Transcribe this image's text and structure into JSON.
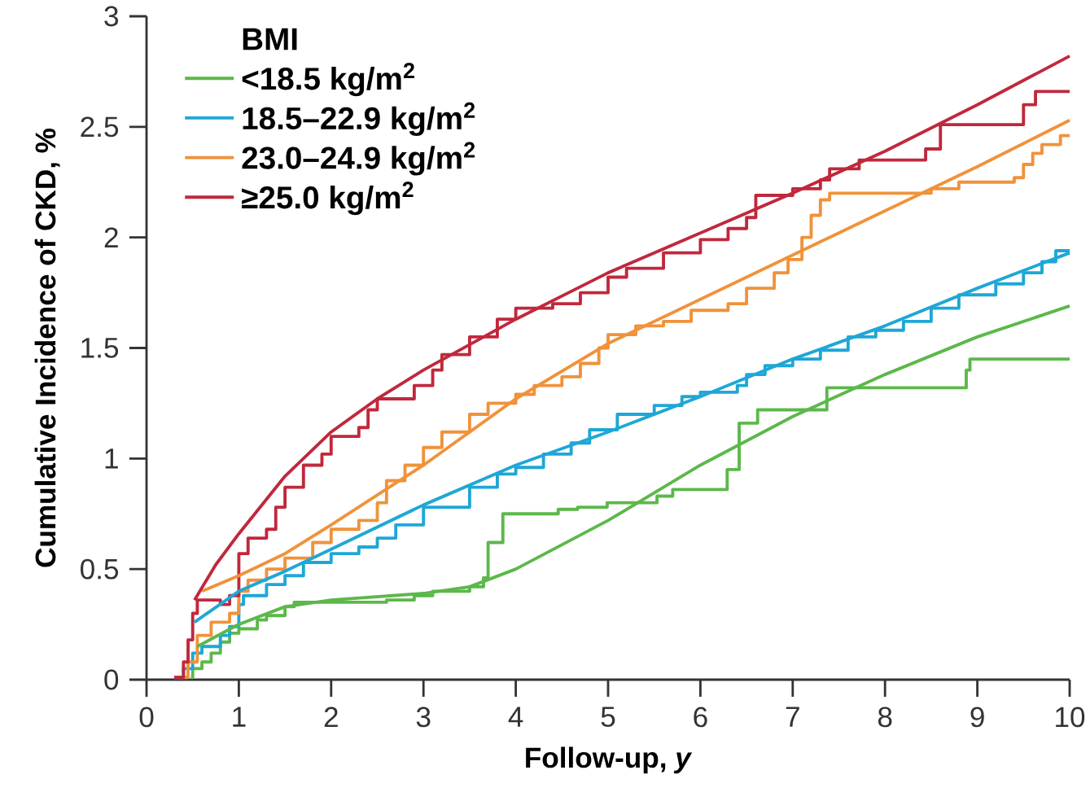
{
  "chart_data": {
    "type": "step",
    "xlabel": "Follow-up, *y*",
    "ylabel": "Cumulative Incidence of CKD, %",
    "legend_title": "**BMI**",
    "legend": "top left",
    "grid": false,
    "xlim": [
      0,
      10
    ],
    "ylim": [
      0,
      3
    ],
    "xticks": [
      0,
      1,
      2,
      3,
      4,
      5,
      6,
      7,
      8,
      9,
      10
    ],
    "yticks": [
      0,
      0.5,
      1,
      1.5,
      2,
      2.5,
      3
    ],
    "series": [
      {
        "name": "<18.5 kg/m$^{2}$",
        "color": "#5cb84a",
        "x": [
          0.48,
          0.5,
          0.6,
          0.7,
          0.8,
          0.9,
          1.0,
          1.2,
          1.3,
          1.5,
          1.6,
          2.6,
          2.9,
          3.1,
          3.5,
          3.65,
          3.7,
          3.86,
          4.46,
          4.67,
          4.99,
          5.53,
          5.7,
          6.29,
          6.42,
          6.62,
          7.37,
          8.88,
          8.92,
          10
        ],
        "values": [
          0.01,
          0.05,
          0.08,
          0.12,
          0.17,
          0.21,
          0.23,
          0.27,
          0.29,
          0.33,
          0.35,
          0.36,
          0.38,
          0.4,
          0.42,
          0.46,
          0.62,
          0.75,
          0.77,
          0.78,
          0.8,
          0.83,
          0.86,
          0.95,
          1.16,
          1.22,
          1.32,
          1.4,
          1.45,
          1.45
        ]
      },
      {
        "name": "18.5–22.9 kg/m$^{2}$",
        "color": "#1ea7d6",
        "x": [
          0.3,
          0.4,
          0.5,
          0.6,
          0.8,
          0.9,
          1.0,
          1.05,
          1.3,
          1.5,
          1.7,
          2.0,
          2.3,
          2.5,
          2.7,
          3.0,
          3.5,
          3.8,
          4.0,
          4.3,
          4.6,
          4.8,
          5.1,
          5.5,
          5.8,
          6.0,
          6.4,
          6.5,
          6.7,
          7.0,
          7.3,
          7.6,
          7.9,
          8.2,
          8.5,
          8.8,
          9.2,
          9.5,
          9.7,
          9.85,
          10
        ],
        "values": [
          0.01,
          0.05,
          0.12,
          0.15,
          0.2,
          0.24,
          0.34,
          0.38,
          0.43,
          0.47,
          0.53,
          0.57,
          0.6,
          0.64,
          0.7,
          0.78,
          0.87,
          0.93,
          0.96,
          1.02,
          1.07,
          1.13,
          1.2,
          1.24,
          1.28,
          1.3,
          1.33,
          1.38,
          1.42,
          1.45,
          1.49,
          1.55,
          1.58,
          1.62,
          1.68,
          1.74,
          1.79,
          1.84,
          1.89,
          1.94,
          1.94
        ]
      },
      {
        "name": "23.0–24.9 kg/m$^{2}$",
        "color": "#f0923a",
        "x": [
          0.3,
          0.45,
          0.55,
          0.7,
          0.9,
          1.0,
          1.1,
          1.3,
          1.5,
          1.8,
          2.0,
          2.3,
          2.5,
          2.6,
          2.8,
          3.0,
          3.2,
          3.5,
          3.7,
          4.0,
          4.2,
          4.5,
          4.7,
          4.9,
          5.0,
          5.3,
          5.6,
          5.9,
          6.3,
          6.5,
          6.8,
          6.95,
          7.1,
          7.2,
          7.3,
          7.4,
          8.5,
          8.8,
          9.4,
          9.5,
          9.6,
          9.7,
          9.9,
          10
        ],
        "values": [
          0.01,
          0.08,
          0.2,
          0.26,
          0.3,
          0.4,
          0.45,
          0.5,
          0.55,
          0.62,
          0.68,
          0.72,
          0.8,
          0.9,
          0.97,
          1.05,
          1.12,
          1.2,
          1.25,
          1.29,
          1.33,
          1.37,
          1.43,
          1.5,
          1.56,
          1.6,
          1.62,
          1.67,
          1.7,
          1.77,
          1.84,
          1.9,
          2.0,
          2.1,
          2.17,
          2.2,
          2.22,
          2.25,
          2.27,
          2.33,
          2.38,
          2.42,
          2.46,
          2.46
        ]
      },
      {
        "name": "≥25.0 kg/m$^{2}$",
        "color": "#c0283c",
        "x": [
          0.3,
          0.4,
          0.45,
          0.5,
          0.55,
          0.8,
          0.9,
          1.0,
          1.1,
          1.3,
          1.4,
          1.5,
          1.7,
          1.9,
          2.0,
          2.3,
          2.4,
          2.5,
          2.9,
          3.1,
          3.2,
          3.5,
          3.8,
          4.0,
          4.4,
          4.7,
          5.0,
          5.2,
          5.6,
          6.0,
          6.3,
          6.5,
          6.6,
          7.0,
          7.3,
          7.4,
          7.72,
          8.44,
          8.6,
          9.4,
          9.5,
          9.63,
          10
        ],
        "values": [
          0.01,
          0.08,
          0.18,
          0.3,
          0.36,
          0.34,
          0.38,
          0.57,
          0.64,
          0.68,
          0.78,
          0.87,
          0.97,
          1.02,
          1.1,
          1.14,
          1.22,
          1.27,
          1.33,
          1.4,
          1.47,
          1.55,
          1.63,
          1.68,
          1.7,
          1.75,
          1.82,
          1.86,
          1.93,
          1.99,
          2.04,
          2.09,
          2.19,
          2.22,
          2.26,
          2.31,
          2.35,
          2.4,
          2.51,
          2.51,
          2.6,
          2.66,
          2.66
        ]
      },
      {
        "type": "line",
        "color": "#5cb84a",
        "x": [
          0.55,
          1,
          1.5,
          2,
          3,
          3.5,
          4,
          5,
          6,
          7,
          8,
          9,
          10
        ],
        "values": [
          0.15,
          0.25,
          0.33,
          0.36,
          0.39,
          0.42,
          0.5,
          0.72,
          0.97,
          1.19,
          1.38,
          1.55,
          1.69
        ]
      },
      {
        "type": "line",
        "color": "#1ea7d6",
        "x": [
          0.52,
          1,
          1.5,
          2,
          3,
          4,
          5,
          6,
          7,
          8,
          9,
          10
        ],
        "values": [
          0.26,
          0.4,
          0.49,
          0.59,
          0.79,
          0.97,
          1.12,
          1.28,
          1.45,
          1.6,
          1.77,
          1.93
        ]
      },
      {
        "type": "line",
        "color": "#f0923a",
        "x": [
          0.6,
          1,
          1.5,
          2,
          3,
          4,
          5,
          6,
          7,
          8,
          9,
          10
        ],
        "values": [
          0.4,
          0.47,
          0.57,
          0.7,
          0.97,
          1.27,
          1.52,
          1.72,
          1.92,
          2.12,
          2.32,
          2.53
        ]
      },
      {
        "type": "line",
        "color": "#c0283c",
        "x": [
          0.52,
          0.75,
          1,
          1.5,
          2,
          2.5,
          3,
          4,
          5,
          6,
          7,
          8,
          9,
          10
        ],
        "values": [
          0.36,
          0.52,
          0.66,
          0.92,
          1.12,
          1.27,
          1.4,
          1.63,
          1.84,
          2.02,
          2.2,
          2.39,
          2.6,
          2.82
        ]
      }
    ]
  }
}
